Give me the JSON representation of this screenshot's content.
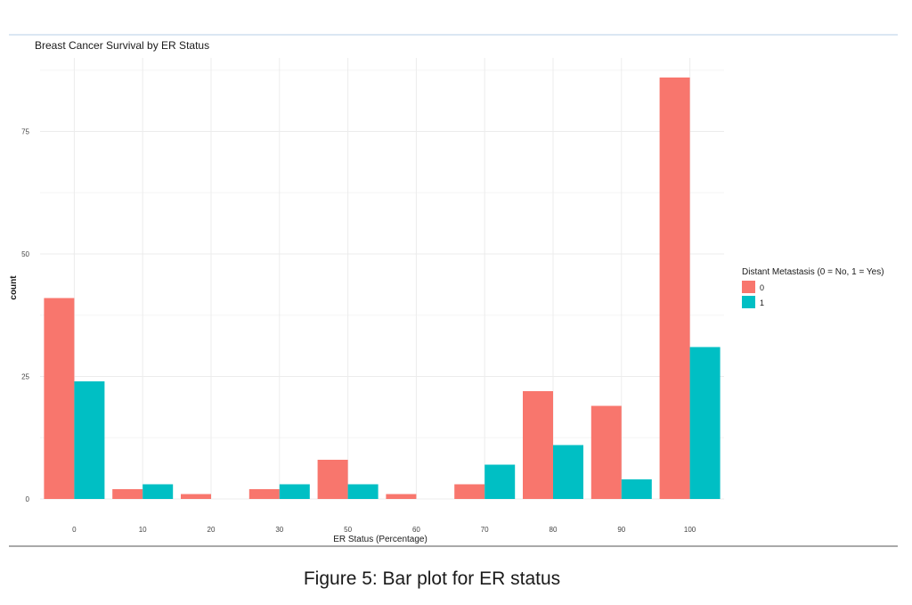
{
  "figure": {
    "caption": "Figure 5: Bar plot for ER status"
  },
  "colors": {
    "series_0": "#F8766D",
    "series_1": "#00BFC4",
    "grid_major": "#ececec",
    "grid_minor": "#f5f5f5",
    "text": "#444444",
    "title_text": "#1a1a1a"
  },
  "chart_data": {
    "type": "bar",
    "title": "Breast Cancer Survival by ER Status",
    "xlabel": "ER Status (Percentage)",
    "ylabel": "count",
    "categories": [
      "0",
      "10",
      "20",
      "30",
      "50",
      "60",
      "70",
      "80",
      "90",
      "100"
    ],
    "series": [
      {
        "name": "0",
        "values": [
          41,
          2,
          1,
          2,
          8,
          1,
          3,
          22,
          19,
          86
        ]
      },
      {
        "name": "1",
        "values": [
          24,
          3,
          0,
          3,
          3,
          0,
          7,
          11,
          4,
          31
        ]
      }
    ],
    "ylim": [
      0,
      90
    ],
    "yticks": [
      0,
      25,
      50,
      75
    ],
    "grid": true,
    "legend": {
      "title": "Distant Metastasis (0 = No, 1 = Yes)",
      "placement": "right",
      "entries": [
        "0",
        "1"
      ]
    }
  }
}
